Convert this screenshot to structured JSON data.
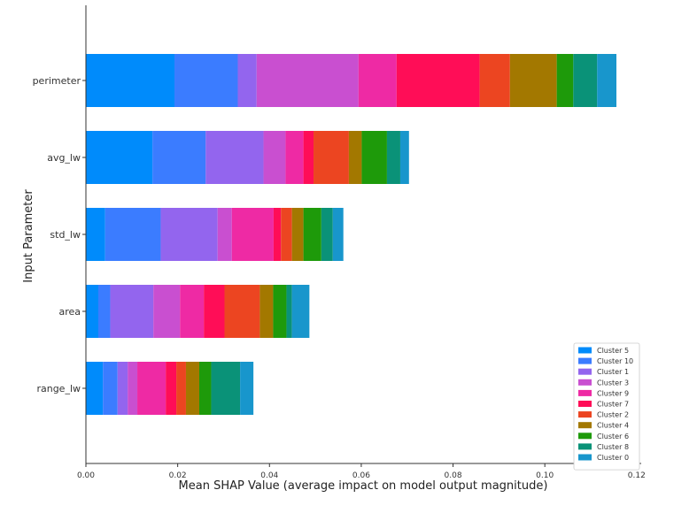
{
  "chart_data": {
    "type": "bar",
    "orientation": "horizontal",
    "stacked": true,
    "xlabel": "Mean SHAP Value (average impact on model output magnitude)",
    "ylabel": "Input Parameter",
    "xlim": [
      0,
      0.121
    ],
    "x_ticks": [
      "0.00",
      "0.02",
      "0.04",
      "0.06",
      "0.08",
      "0.10",
      "0.12"
    ],
    "x_tick_values": [
      0,
      0.02,
      0.04,
      0.06,
      0.08,
      0.1,
      0.12
    ],
    "categories": [
      "perimeter",
      "avg_lw",
      "std_lw",
      "area",
      "range_lw"
    ],
    "grid": false,
    "legend_position": "lower-right",
    "series": [
      {
        "name": "Cluster 5",
        "color": "#008bfb",
        "values": [
          0.0193,
          0.0145,
          0.0042,
          0.0027,
          0.0037
        ]
      },
      {
        "name": "Cluster 10",
        "color": "#3b7cff",
        "values": [
          0.0138,
          0.0116,
          0.0121,
          0.0026,
          0.0032
        ]
      },
      {
        "name": "Cluster 1",
        "color": "#9365ee",
        "values": [
          0.0041,
          0.0126,
          0.0124,
          0.0094,
          0.0022
        ]
      },
      {
        "name": "Cluster 3",
        "color": "#c94fd0",
        "values": [
          0.0222,
          0.0048,
          0.0031,
          0.0058,
          0.0021
        ]
      },
      {
        "name": "Cluster 9",
        "color": "#ee2aa4",
        "values": [
          0.0083,
          0.0039,
          0.0091,
          0.0052,
          0.0062
        ]
      },
      {
        "name": "Cluster 7",
        "color": "#ff0d57",
        "values": [
          0.0181,
          0.0022,
          0.0016,
          0.0045,
          0.0023
        ]
      },
      {
        "name": "Cluster 2",
        "color": "#ec4521",
        "values": [
          0.0066,
          0.0077,
          0.0024,
          0.0077,
          0.0021
        ]
      },
      {
        "name": "Cluster 4",
        "color": "#a37800",
        "values": [
          0.0102,
          0.0028,
          0.0025,
          0.0029,
          0.0029
        ]
      },
      {
        "name": "Cluster 6",
        "color": "#1e9a0a",
        "values": [
          0.0036,
          0.0055,
          0.0039,
          0.0029,
          0.0026
        ]
      },
      {
        "name": "Cluster 8",
        "color": "#0a9278",
        "values": [
          0.0052,
          0.0029,
          0.0025,
          0.0012,
          0.0063
        ]
      },
      {
        "name": "Cluster 0",
        "color": "#1896cc",
        "values": [
          0.0042,
          0.0019,
          0.0023,
          0.0038,
          0.0029
        ]
      }
    ]
  }
}
